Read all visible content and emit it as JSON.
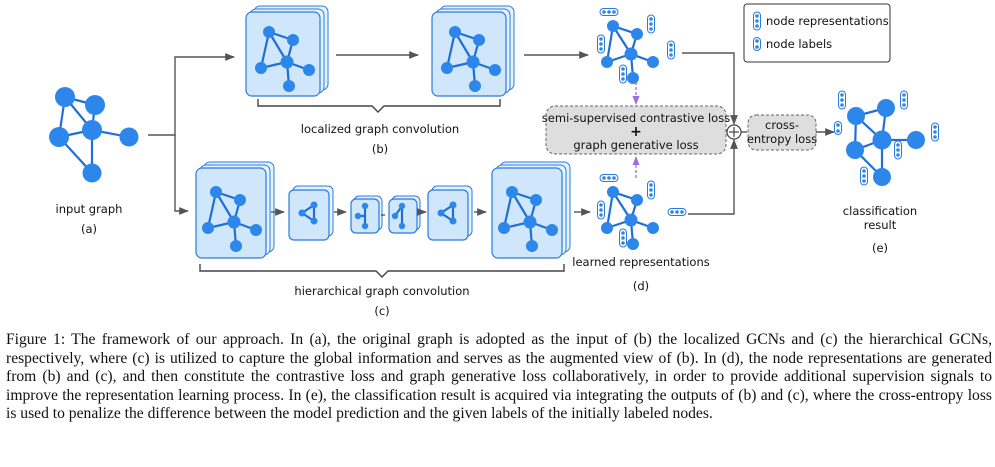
{
  "figure": {
    "input_label": "input graph",
    "input_tag": "(a)",
    "localized_label": "localized graph convolution",
    "localized_tag": "(b)",
    "hierarchical_label": "hierarchical graph convolution",
    "hierarchical_tag": "(c)",
    "learned_label": "learned representations",
    "learned_tag": "(d)",
    "loss_line1": "semi-supervised contrastive loss",
    "loss_plus": "+",
    "loss_line2": "graph generative loss",
    "ce_line1": "cross-",
    "ce_line2": "entropy loss",
    "result_line1": "classification",
    "result_line2": "result",
    "result_tag": "(e)",
    "legend": {
      "item1": "node representations",
      "item2": "node labels"
    },
    "colors": {
      "node": "#2d87ea",
      "edge": "#1f6fd6",
      "card_fill": "#cfe6fb",
      "card_stroke": "#2b7be0",
      "dashed_arrow": "#9b6ee6"
    }
  },
  "caption": "Figure 1: The framework of our approach. In (a), the original graph is adopted as the input of (b) the localized GCNs and (c) the hierarchical GCNs, respectively, where (c) is utilized to capture the global information and serves as the augmented view of (b). In (d), the node representations are generated from (b) and (c), and then constitute the contrastive loss and graph generative loss collaboratively, in order to provide additional supervision signals to improve the representation learning process. In (e), the classification result is acquired via integrating the outputs of (b) and (c), where the cross-entropy loss is used to penalize the difference between the model prediction and the given labels of the initially labeled nodes."
}
